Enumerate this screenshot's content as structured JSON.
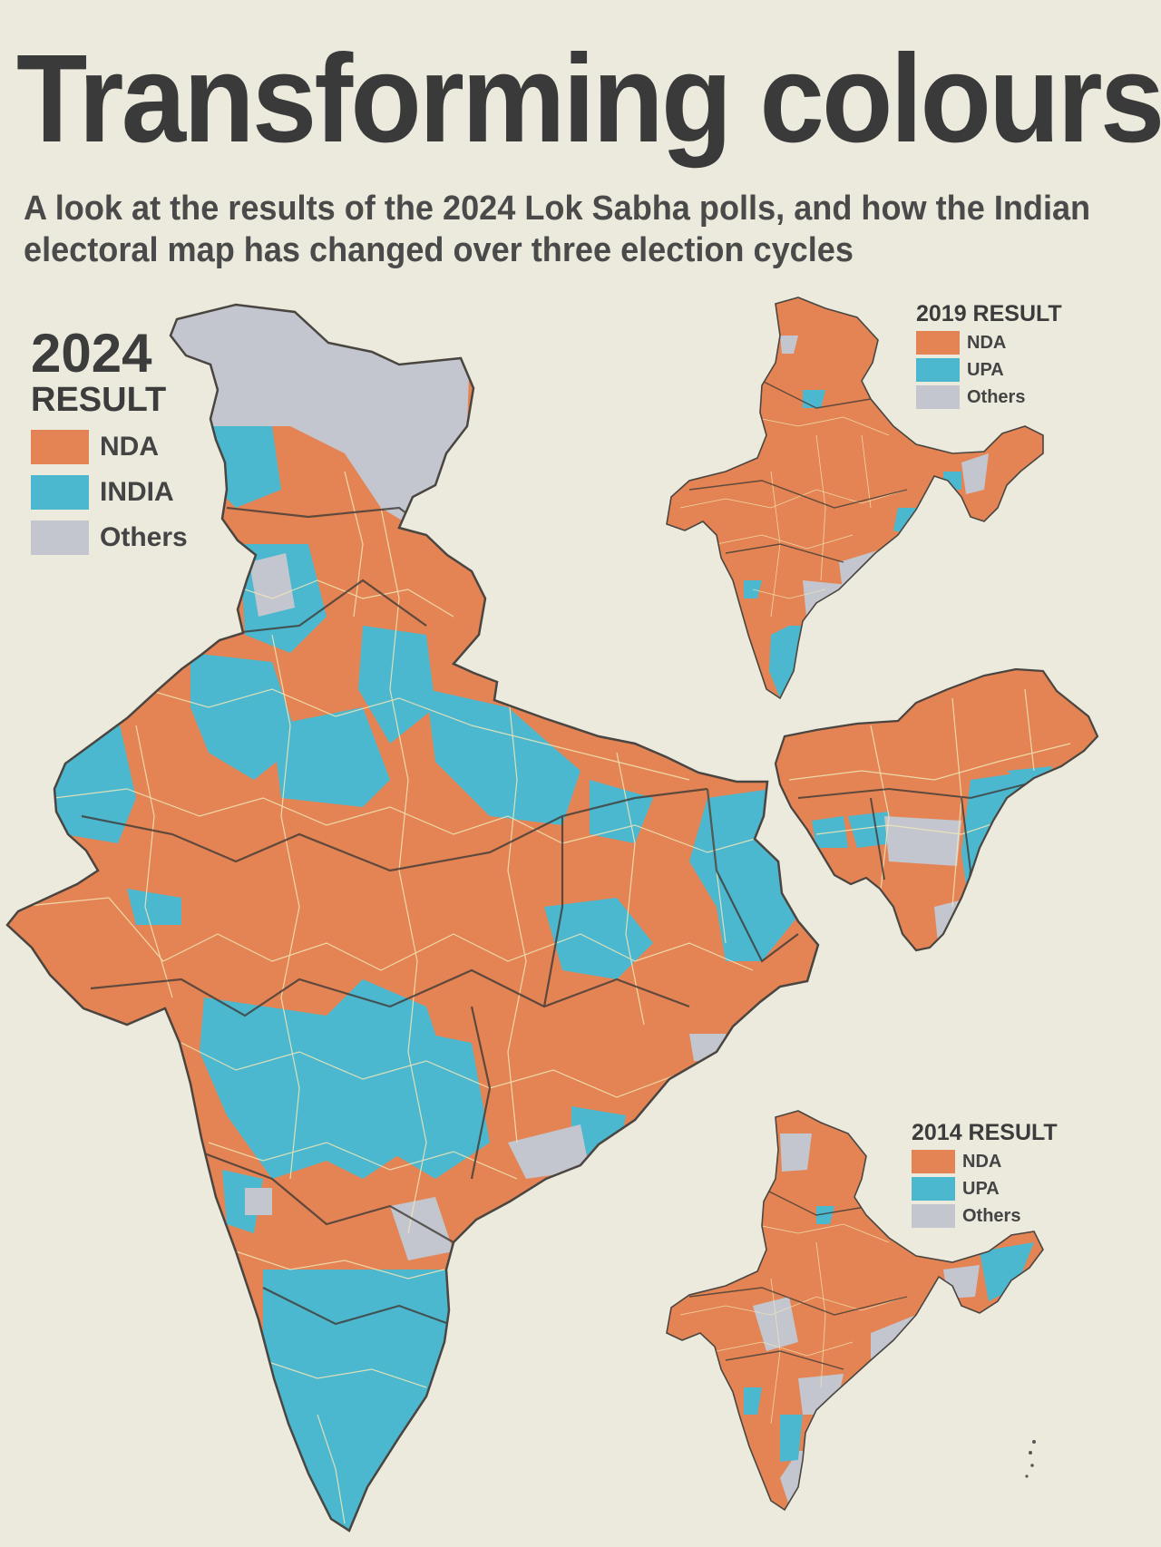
{
  "title": "Transforming colours",
  "subtitle": "A look at the results of the 2024 Lok Sabha polls, and how the Indian electoral map has changed over three election cycles",
  "colors": {
    "nda": "#e48454",
    "india_upa": "#4cb8cf",
    "others": "#c3c6cf",
    "border_state": "#3e3a36",
    "border_constituency": "#f3e7b8"
  },
  "legend_2024": {
    "year": "2024",
    "subheading": "RESULT",
    "items": [
      {
        "label": "NDA",
        "color": "#e48454"
      },
      {
        "label": "INDIA",
        "color": "#4cb8cf"
      },
      {
        "label": "Others",
        "color": "#c3c6cf"
      }
    ]
  },
  "legend_2019": {
    "heading": "2019 RESULT",
    "items": [
      {
        "label": "NDA",
        "color": "#e48454"
      },
      {
        "label": "UPA",
        "color": "#4cb8cf"
      },
      {
        "label": "Others",
        "color": "#c3c6cf"
      }
    ]
  },
  "legend_2014": {
    "heading": "2014 RESULT",
    "items": [
      {
        "label": "NDA",
        "color": "#e48454"
      },
      {
        "label": "UPA",
        "color": "#4cb8cf"
      },
      {
        "label": "Others",
        "color": "#c3c6cf"
      }
    ]
  },
  "maps": [
    {
      "name": "map-2024",
      "year": "2024"
    },
    {
      "name": "map-2019",
      "year": "2019"
    },
    {
      "name": "map-2014",
      "year": "2014"
    }
  ]
}
